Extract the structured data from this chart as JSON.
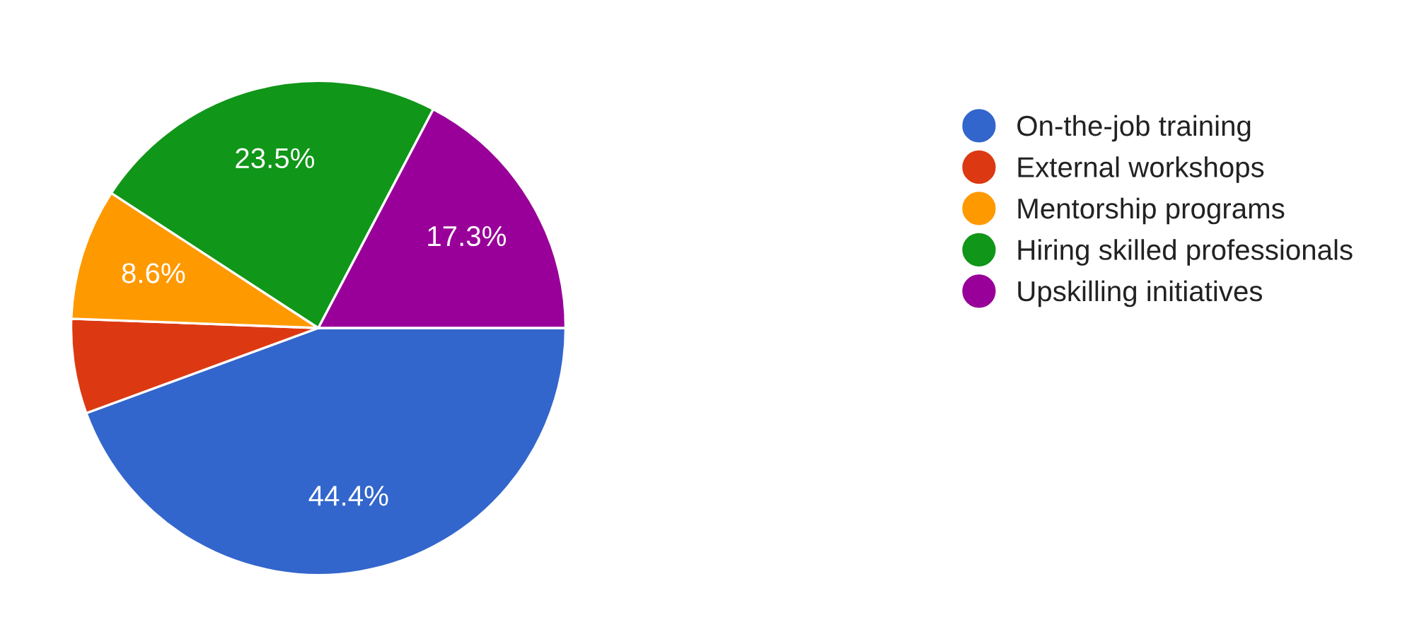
{
  "chart_data": {
    "type": "pie",
    "categories": [
      "On-the-job training",
      "External workshops",
      "Mentorship programs",
      "Hiring skilled professionals",
      "Upskilling initiatives"
    ],
    "values": [
      44.4,
      6.2,
      8.6,
      23.5,
      17.3
    ],
    "colors": [
      "#3366cc",
      "#dc3912",
      "#ff9900",
      "#109618",
      "#990099"
    ],
    "value_labels": [
      "44.4%",
      null,
      "8.6%",
      "23.5%",
      "17.3%"
    ],
    "legend": "right"
  }
}
